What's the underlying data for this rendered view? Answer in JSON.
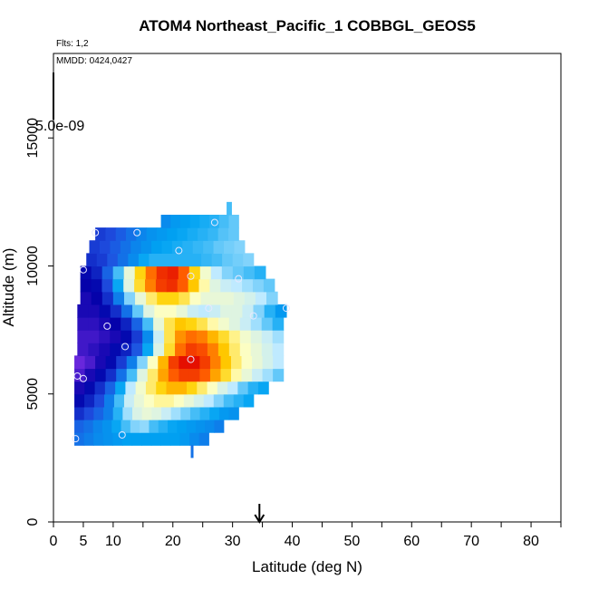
{
  "chart_data": {
    "type": "heatmap",
    "title": "ATOM4 Northeast_Pacific_1 COBBGL_GEOS5",
    "subtitle_flights": "Flts: 1,2",
    "subtitle_dates": "MMDD: 0424,0427",
    "colorbar_max_label": "5.0e-09",
    "xlabel": "Latitude (deg N)",
    "ylabel": "Altitude (m)",
    "xlim": [
      0,
      85
    ],
    "ylim": [
      0,
      18300
    ],
    "x_ticks": [
      0,
      5,
      10,
      20,
      30,
      40,
      50,
      60,
      70,
      80
    ],
    "y_ticks": [
      0,
      5000,
      10000,
      15000
    ],
    "arrow_latitude": 34.5,
    "colormap": [
      "#7c2ee6",
      "#0000a8",
      "#1f4fe0",
      "#00a3f2",
      "#bfeaff",
      "#ffffc0",
      "#ffd000",
      "#ff6000",
      "#e00000"
    ],
    "rows": [
      {
        "alt_lo": 3000,
        "alt_hi": 3500,
        "x_start": 3.5,
        "x_end": 26,
        "values": [
          0.3,
          0.32,
          0.34,
          0.35,
          0.36,
          0.37,
          0.37,
          0.37,
          0.37,
          0.37,
          0.37,
          0.36,
          0.34,
          0.32
        ]
      },
      {
        "alt_lo": 3500,
        "alt_hi": 4000,
        "x_start": 3.5,
        "x_end": 28.5,
        "values": [
          0.28,
          0.3,
          0.33,
          0.35,
          0.38,
          0.42,
          0.46,
          0.47,
          0.42,
          0.4,
          0.38,
          0.37,
          0.36,
          0.35,
          0.34,
          0.32
        ]
      },
      {
        "alt_lo": 4000,
        "alt_hi": 4500,
        "x_start": 3.5,
        "x_end": 31,
        "values": [
          0.2,
          0.24,
          0.28,
          0.32,
          0.4,
          0.48,
          0.55,
          0.58,
          0.56,
          0.52,
          0.48,
          0.45,
          0.42,
          0.4,
          0.38,
          0.36,
          0.35
        ]
      },
      {
        "alt_lo": 4500,
        "alt_hi": 5000,
        "x_start": 3.5,
        "x_end": 33.5,
        "values": [
          0.14,
          0.18,
          0.24,
          0.32,
          0.42,
          0.52,
          0.58,
          0.62,
          0.65,
          0.65,
          0.62,
          0.58,
          0.54,
          0.5,
          0.46,
          0.42,
          0.4,
          0.38
        ]
      },
      {
        "alt_lo": 5000,
        "alt_hi": 5500,
        "x_start": 3.5,
        "x_end": 36,
        "values": [
          0.1,
          0.14,
          0.2,
          0.28,
          0.38,
          0.5,
          0.6,
          0.68,
          0.74,
          0.78,
          0.78,
          0.74,
          0.68,
          0.62,
          0.55,
          0.5,
          0.44,
          0.4,
          0.38
        ]
      },
      {
        "alt_lo": 5500,
        "alt_hi": 6000,
        "x_start": 3.5,
        "x_end": 38.5,
        "values": [
          0.05,
          0.1,
          0.14,
          0.2,
          0.3,
          0.42,
          0.56,
          0.68,
          0.8,
          0.88,
          0.92,
          0.92,
          0.88,
          0.8,
          0.72,
          0.64,
          0.58,
          0.52,
          0.48,
          0.44
        ]
      },
      {
        "alt_lo": 6000,
        "alt_hi": 6500,
        "x_start": 3.5,
        "x_end": 38.5,
        "values": [
          0.02,
          0.05,
          0.1,
          0.14,
          0.22,
          0.32,
          0.46,
          0.62,
          0.78,
          0.92,
          0.98,
          0.98,
          0.92,
          0.84,
          0.76,
          0.68,
          0.62,
          0.58,
          0.54,
          0.5
        ]
      },
      {
        "alt_lo": 6500,
        "alt_hi": 7000,
        "x_start": 4,
        "x_end": 38.5,
        "values": [
          0.06,
          0.08,
          0.1,
          0.14,
          0.18,
          0.26,
          0.38,
          0.55,
          0.72,
          0.86,
          0.92,
          0.9,
          0.84,
          0.76,
          0.68,
          0.62,
          0.58,
          0.54,
          0.5
        ]
      },
      {
        "alt_lo": 7000,
        "alt_hi": 7500,
        "x_start": 4,
        "x_end": 38.5,
        "values": [
          0.06,
          0.06,
          0.08,
          0.1,
          0.14,
          0.22,
          0.34,
          0.52,
          0.7,
          0.82,
          0.86,
          0.84,
          0.78,
          0.72,
          0.66,
          0.6,
          0.56,
          0.52,
          0.48
        ]
      },
      {
        "alt_lo": 7500,
        "alt_hi": 8000,
        "x_start": 4,
        "x_end": 38.5,
        "values": [
          0.08,
          0.08,
          0.1,
          0.12,
          0.18,
          0.28,
          0.42,
          0.58,
          0.7,
          0.76,
          0.74,
          0.7,
          0.64,
          0.6,
          0.56,
          0.52,
          0.48,
          0.44,
          0.4
        ]
      },
      {
        "alt_lo": 8000,
        "alt_hi": 8500,
        "x_start": 4,
        "x_end": 39,
        "values": [
          0.1,
          0.1,
          0.14,
          0.2,
          0.3,
          0.44,
          0.56,
          0.62,
          0.62,
          0.58,
          0.52,
          0.5,
          0.52,
          0.56,
          0.56,
          0.52,
          0.46,
          0.4,
          0.36
        ]
      },
      {
        "alt_lo": 8500,
        "alt_hi": 9000,
        "x_start": 4.5,
        "x_end": 37.5,
        "values": [
          0.1,
          0.12,
          0.2,
          0.32,
          0.46,
          0.58,
          0.68,
          0.74,
          0.74,
          0.7,
          0.62,
          0.58,
          0.58,
          0.58,
          0.56,
          0.54,
          0.5,
          0.46
        ]
      },
      {
        "alt_lo": 9000,
        "alt_hi": 9500,
        "x_start": 4.5,
        "x_end": 37,
        "values": [
          0.12,
          0.14,
          0.24,
          0.38,
          0.56,
          0.72,
          0.84,
          0.92,
          0.94,
          0.88,
          0.76,
          0.64,
          0.56,
          0.52,
          0.5,
          0.48,
          0.46,
          0.44
        ]
      },
      {
        "alt_lo": 9500,
        "alt_hi": 10000,
        "x_start": 4.5,
        "x_end": 35.5,
        "values": [
          0.14,
          0.18,
          0.28,
          0.42,
          0.58,
          0.74,
          0.86,
          0.94,
          0.96,
          0.88,
          0.74,
          0.6,
          0.5,
          0.46,
          0.44,
          0.42,
          0.4
        ]
      },
      {
        "alt_lo": 10000,
        "alt_hi": 10500,
        "x_start": 5.5,
        "x_end": 33.5,
        "values": [
          0.2,
          0.22,
          0.26,
          0.3,
          0.34,
          0.38,
          0.4,
          0.4,
          0.4,
          0.4,
          0.4,
          0.41,
          0.42,
          0.44,
          0.45,
          0.46
        ]
      },
      {
        "alt_lo": 10500,
        "alt_hi": 11000,
        "x_start": 6,
        "x_end": 32,
        "values": [
          0.22,
          0.24,
          0.27,
          0.3,
          0.33,
          0.35,
          0.37,
          0.38,
          0.39,
          0.4,
          0.41,
          0.42,
          0.44,
          0.45,
          0.46
        ]
      },
      {
        "alt_lo": 11000,
        "alt_hi": 11500,
        "x_start": 7,
        "x_end": 31,
        "values": [
          0.22,
          0.24,
          0.27,
          0.3,
          0.33,
          0.35,
          0.36,
          0.37,
          0.38,
          0.39,
          0.4,
          0.41,
          0.43,
          0.44
        ]
      },
      {
        "alt_lo": 11500,
        "alt_hi": 12000,
        "x_start": 18,
        "x_end": 31,
        "values": [
          0.34,
          0.36,
          0.37,
          0.38,
          0.39,
          0.4,
          0.42,
          0.44
        ]
      },
      {
        "alt_lo": 12000,
        "alt_hi": 12500,
        "x_start": 29,
        "x_end": 29.8,
        "values": [
          0.42
        ]
      }
    ],
    "points": [
      {
        "lat": 3.7,
        "alt": 3250
      },
      {
        "lat": 11.5,
        "alt": 3400
      },
      {
        "lat": 4.0,
        "alt": 5700
      },
      {
        "lat": 5.0,
        "alt": 5600
      },
      {
        "lat": 23.0,
        "alt": 6350
      },
      {
        "lat": 12.0,
        "alt": 6850
      },
      {
        "lat": 9.0,
        "alt": 7650
      },
      {
        "lat": 33.5,
        "alt": 8050
      },
      {
        "lat": 26.0,
        "alt": 8350
      },
      {
        "lat": 39.0,
        "alt": 8350
      },
      {
        "lat": 5.0,
        "alt": 9850
      },
      {
        "lat": 23.0,
        "alt": 9600
      },
      {
        "lat": 31.0,
        "alt": 9500
      },
      {
        "lat": 21.0,
        "alt": 10600
      },
      {
        "lat": 7.0,
        "alt": 11300
      },
      {
        "lat": 14.0,
        "alt": 11300
      },
      {
        "lat": 27.0,
        "alt": 11700
      }
    ],
    "grid": false,
    "legend": "none"
  }
}
